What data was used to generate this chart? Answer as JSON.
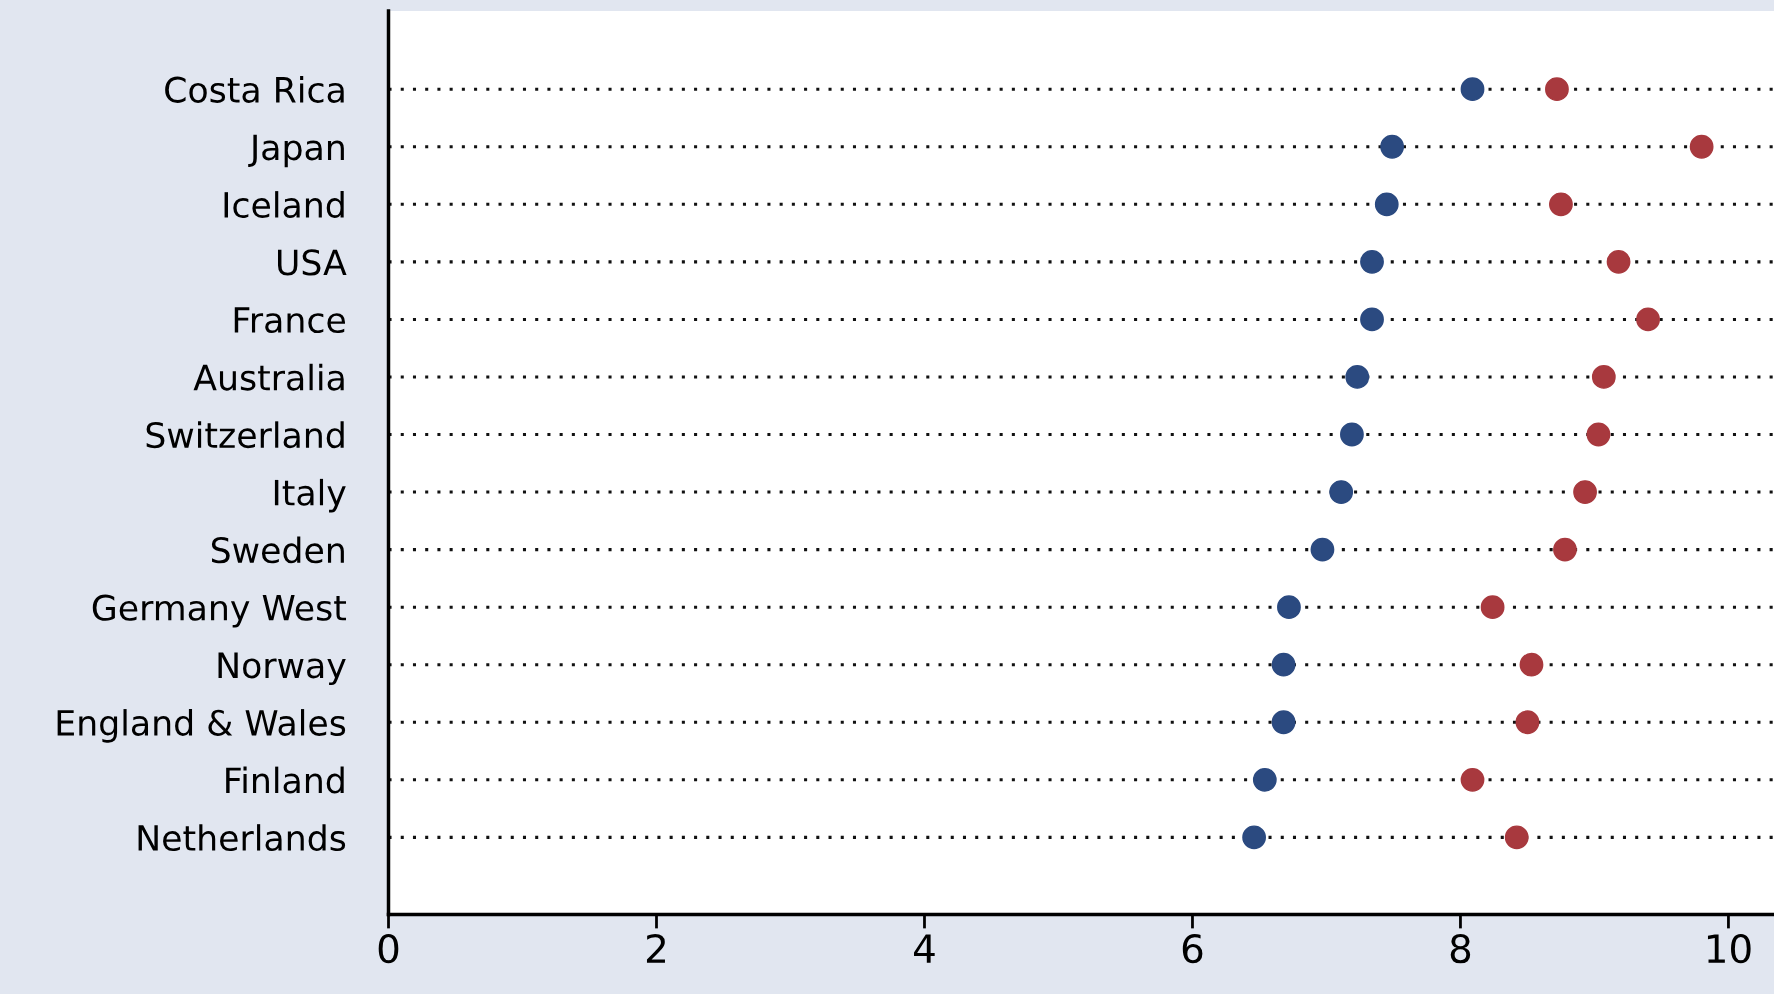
{
  "chart_data": {
    "type": "scatter",
    "orientation": "horizontal",
    "categories": [
      "Costa Rica",
      "Japan",
      "Iceland",
      "USA",
      "France",
      "Australia",
      "Switzerland",
      "Italy",
      "Sweden",
      "Germany West",
      "Norway",
      "England & Wales",
      "Finland",
      "Netherlands"
    ],
    "series": [
      {
        "color": "#2b4a80",
        "values": [
          8.09,
          7.49,
          7.45,
          7.34,
          7.34,
          7.23,
          7.19,
          7.11,
          6.97,
          6.72,
          6.68,
          6.68,
          6.54,
          6.46
        ]
      },
      {
        "color": "#a8393e",
        "values": [
          8.72,
          9.8,
          8.75,
          9.18,
          9.4,
          9.07,
          9.03,
          8.93,
          8.78,
          8.24,
          8.53,
          8.5,
          8.09,
          8.42
        ]
      }
    ],
    "xlim": [
      0,
      10.34
    ],
    "xticks": [
      0,
      2,
      4,
      6,
      8,
      10
    ],
    "grid": "y",
    "marker": "circle",
    "legend": false
  }
}
